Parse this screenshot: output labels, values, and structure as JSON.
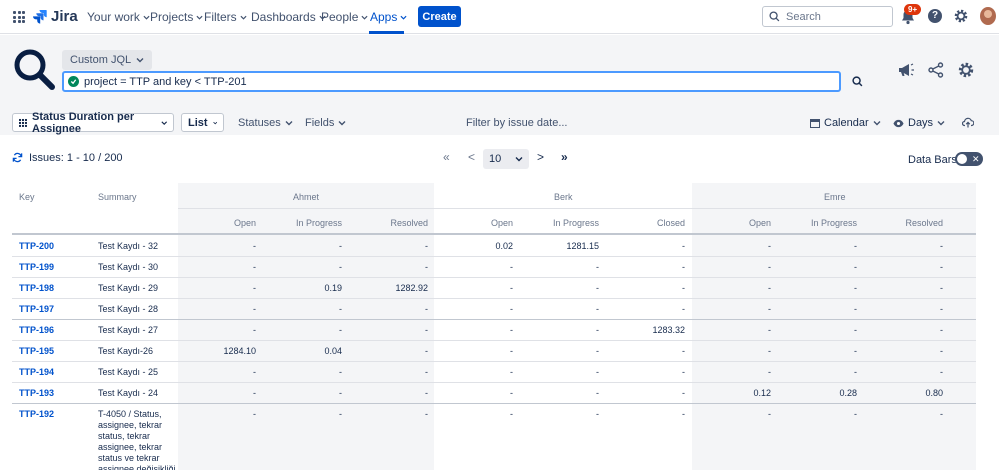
{
  "nav": {
    "logo": "Jira",
    "items": [
      "Your work",
      "Projects",
      "Filters",
      "Dashboards",
      "People",
      "Apps"
    ],
    "create": "Create",
    "search_placeholder": "Search",
    "notifications_badge": "9+",
    "help": "?"
  },
  "jql": {
    "mode": "Custom JQL",
    "query": "project = TTP and key < TTP-201"
  },
  "toolbar": {
    "report": "Status Duration per Assignee",
    "view": "List",
    "statuses": "Statuses",
    "fields": "Fields",
    "filter_date": "Filter by issue date...",
    "calendar": "Calendar",
    "days": "Days"
  },
  "pagination": {
    "issues_count": "Issues: 1 - 10 / 200",
    "first": "«",
    "prev": "<",
    "page_size": "10",
    "next": ">",
    "last": "»"
  },
  "databars": {
    "label": "Data Bars",
    "off": "✕"
  },
  "table": {
    "key_header": "Key",
    "summary_header": "Summary",
    "groups": [
      {
        "name": "Ahmet",
        "cols": [
          "Open",
          "In Progress",
          "Resolved"
        ]
      },
      {
        "name": "Berk",
        "cols": [
          "Open",
          "In Progress",
          "Closed"
        ]
      },
      {
        "name": "Emre",
        "cols": [
          "Open",
          "In Progress",
          "Resolved"
        ]
      }
    ],
    "rows": [
      {
        "key": "TTP-200",
        "summary": [
          "Test Kaydı - 32"
        ],
        "values": [
          "-",
          "-",
          "-",
          "0.02",
          "1281.15",
          "-",
          "-",
          "-",
          "-"
        ]
      },
      {
        "key": "TTP-199",
        "summary": [
          "Test Kaydı - 30"
        ],
        "values": [
          "-",
          "-",
          "-",
          "-",
          "-",
          "-",
          "-",
          "-",
          "-"
        ]
      },
      {
        "key": "TTP-198",
        "summary": [
          "Test Kaydı - 29"
        ],
        "values": [
          "-",
          "0.19",
          "1282.92",
          "-",
          "-",
          "-",
          "-",
          "-",
          "-"
        ]
      },
      {
        "key": "TTP-197",
        "summary": [
          "Test Kaydı - 28"
        ],
        "values": [
          "-",
          "-",
          "-",
          "-",
          "-",
          "-",
          "-",
          "-",
          "-"
        ]
      },
      {
        "key": "TTP-196",
        "summary": [
          "Test Kaydı - 27"
        ],
        "values": [
          "-",
          "-",
          "-",
          "-",
          "-",
          "1283.32",
          "-",
          "-",
          "-"
        ]
      },
      {
        "key": "TTP-195",
        "summary": [
          "Test Kaydı-26"
        ],
        "values": [
          "1284.10",
          "0.04",
          "-",
          "-",
          "-",
          "-",
          "-",
          "-",
          "-"
        ]
      },
      {
        "key": "TTP-194",
        "summary": [
          "Test Kaydı - 25"
        ],
        "values": [
          "-",
          "-",
          "-",
          "-",
          "-",
          "-",
          "-",
          "-",
          "-"
        ]
      },
      {
        "key": "TTP-193",
        "summary": [
          "Test Kaydı - 24"
        ],
        "values": [
          "-",
          "-",
          "-",
          "-",
          "-",
          "-",
          "0.12",
          "0.28",
          "0.80"
        ]
      },
      {
        "key": "TTP-192",
        "summary": [
          "T-4050 / Status,",
          "assignee, tekrar",
          "status, tekrar",
          "assignee, tekrar",
          "status ve tekrar",
          "assignee değişikliği"
        ],
        "values": [
          "-",
          "-",
          "-",
          "-",
          "-",
          "-",
          "-",
          "-",
          "-"
        ]
      }
    ]
  },
  "colors": {
    "primary": "#0052cc",
    "text": "#172b4d",
    "subtle": "#6b778c",
    "badge": "#de350b",
    "ok": "#00875a",
    "focus": "#4c9aff"
  }
}
